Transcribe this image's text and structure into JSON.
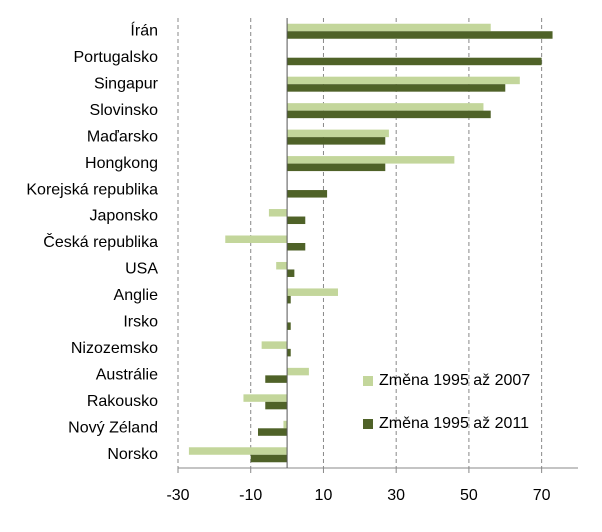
{
  "chart_data": {
    "type": "hbar",
    "categories": [
      "Írán",
      "Portugalsko",
      "Singapur",
      "Slovinsko",
      "Maďarsko",
      "Hongkong",
      "Korejská republika",
      "Japonsko",
      "Česká republika",
      "USA",
      "Anglie",
      "Irsko",
      "Nizozemsko",
      "Austrálie",
      "Rakousko",
      "Nový Zéland",
      "Norsko"
    ],
    "series": [
      {
        "name": "Změna 1995 až 2007",
        "color": "#c3d69b",
        "values": [
          56,
          null,
          64,
          54,
          28,
          46,
          null,
          -5,
          -17,
          -3,
          14,
          null,
          -7,
          6,
          -12,
          -1,
          -27
        ]
      },
      {
        "name": "Změna 1995 až 2011",
        "color": "#4f6228",
        "values": [
          73,
          70,
          60,
          56,
          27,
          27,
          11,
          5,
          5,
          2,
          1,
          1,
          1,
          -6,
          -6,
          -8,
          -10
        ]
      }
    ],
    "xlim": [
      -30,
      80
    ],
    "xticks": [
      -30,
      -10,
      10,
      30,
      50,
      70
    ],
    "grid": true,
    "legend": "lower right"
  }
}
